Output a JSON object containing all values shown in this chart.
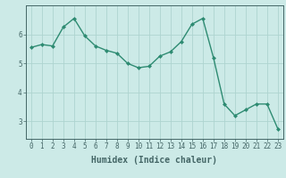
{
  "x": [
    0,
    1,
    2,
    3,
    4,
    5,
    6,
    7,
    8,
    9,
    10,
    11,
    12,
    13,
    14,
    15,
    16,
    17,
    18,
    19,
    20,
    21,
    22,
    23
  ],
  "y": [
    5.55,
    5.65,
    5.6,
    6.25,
    6.55,
    5.95,
    5.6,
    5.45,
    5.35,
    5.0,
    4.85,
    4.9,
    5.25,
    5.4,
    5.75,
    6.35,
    6.55,
    5.2,
    3.6,
    3.2,
    3.4,
    3.6,
    3.6,
    2.75
  ],
  "line_color": "#2e8b72",
  "marker": "D",
  "marker_size": 2.0,
  "bg_color": "#cceae7",
  "grid_color": "#aed4d0",
  "axis_color": "#446666",
  "xlabel": "Humidex (Indice chaleur)",
  "ylabel": "",
  "ylim": [
    2.4,
    7.0
  ],
  "xlim": [
    -0.5,
    23.5
  ],
  "yticks": [
    3,
    4,
    5,
    6
  ],
  "xticks": [
    0,
    1,
    2,
    3,
    4,
    5,
    6,
    7,
    8,
    9,
    10,
    11,
    12,
    13,
    14,
    15,
    16,
    17,
    18,
    19,
    20,
    21,
    22,
    23
  ],
  "tick_label_size": 5.5,
  "xlabel_size": 7.0,
  "line_width": 1.0
}
